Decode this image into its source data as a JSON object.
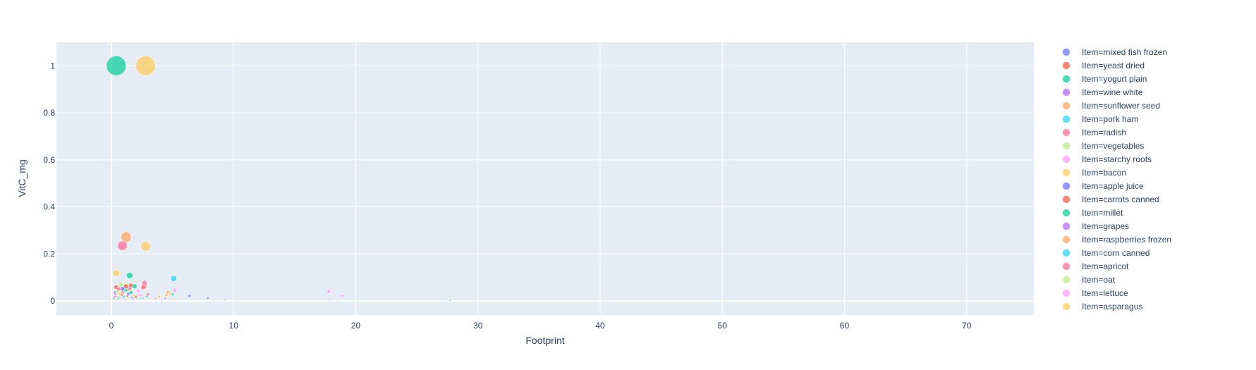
{
  "chart_data": {
    "type": "scatter",
    "title": "",
    "xlabel": "Footprint",
    "ylabel": "VitC_mg",
    "xlim": [
      -4.5,
      75.5
    ],
    "ylim": [
      -0.06,
      1.1
    ],
    "xticks": [
      0,
      10,
      20,
      30,
      40,
      50,
      60,
      70
    ],
    "yticks": [
      0,
      0.2,
      0.4,
      0.6,
      0.8,
      1
    ],
    "ytick_labels": [
      "0",
      "0.2",
      "0.4",
      "0.6",
      "0.8",
      "1"
    ],
    "grid": true,
    "legend_position": "right",
    "size_encodes": "VitC_mg",
    "series": [
      {
        "name": "Item=mixed fish frozen",
        "color": "#636efa",
        "points": [
          [
            0.3,
            0.035
          ],
          [
            1.4,
            0.03
          ],
          [
            6.4,
            0.022
          ],
          [
            7.9,
            0.013
          ],
          [
            9.3,
            0.004
          ],
          [
            27.7,
            0.002
          ]
        ]
      },
      {
        "name": "Item=yeast dried",
        "color": "#EF553B",
        "points": [
          [
            0.4,
            0.058
          ],
          [
            1.6,
            0.065
          ],
          [
            2.7,
            0.06
          ],
          [
            0.9,
            0.025
          ],
          [
            8.4,
            0.004
          ],
          [
            3.6,
            0.01
          ]
        ]
      },
      {
        "name": "Item=yogurt plain",
        "color": "#00cc96",
        "points": [
          [
            0.4,
            1.0
          ],
          [
            1.5,
            0.108
          ],
          [
            1.9,
            0.062
          ],
          [
            1.2,
            0.048
          ],
          [
            0.7,
            0.02
          ],
          [
            2.1,
            0.015
          ]
        ]
      },
      {
        "name": "Item=wine white",
        "color": "#ab63fa",
        "points": [
          [
            0.6,
            0.012
          ],
          [
            1.8,
            0.008
          ],
          [
            4.4,
            0.01
          ],
          [
            17.9,
            0.006
          ]
        ]
      },
      {
        "name": "Item=sunflower seed",
        "color": "#FFA15A",
        "points": [
          [
            1.2,
            0.272
          ],
          [
            4.6,
            0.035
          ],
          [
            2.6,
            0.012
          ],
          [
            3.9,
            0.018
          ]
        ]
      },
      {
        "name": "Item=pork ham",
        "color": "#19d3f3",
        "points": [
          [
            5.1,
            0.095
          ],
          [
            1.0,
            0.045
          ],
          [
            2.9,
            0.02
          ],
          [
            0.5,
            0.012
          ],
          [
            5.0,
            0.028
          ]
        ]
      },
      {
        "name": "Item=radish",
        "color": "#FF6692",
        "points": [
          [
            0.9,
            0.235
          ],
          [
            2.7,
            0.075
          ],
          [
            1.5,
            0.05
          ],
          [
            3.0,
            0.028
          ],
          [
            0.4,
            0.02
          ]
        ]
      },
      {
        "name": "Item=vegetables",
        "color": "#B6E880",
        "points": [
          [
            0.8,
            0.07
          ],
          [
            1.6,
            0.04
          ],
          [
            0.5,
            0.018
          ],
          [
            2.2,
            0.01
          ]
        ]
      },
      {
        "name": "Item=starchy roots",
        "color": "#FF97FF",
        "points": [
          [
            17.8,
            0.04
          ],
          [
            5.2,
            0.045
          ],
          [
            2.4,
            0.025
          ],
          [
            18.9,
            0.022
          ],
          [
            0.7,
            0.015
          ]
        ]
      },
      {
        "name": "Item=bacon",
        "color": "#FECB52",
        "points": [
          [
            2.8,
            1.0
          ],
          [
            2.8,
            0.232
          ],
          [
            0.4,
            0.118
          ],
          [
            4.8,
            0.03
          ],
          [
            1.3,
            0.01
          ]
        ]
      },
      {
        "name": "Item=apple juice",
        "color": "#636efa",
        "points": [
          [
            0.9,
            0.052
          ],
          [
            0.2,
            0.01
          ],
          [
            1.7,
            0.015
          ]
        ]
      },
      {
        "name": "Item=carrots canned",
        "color": "#EF553B",
        "points": [
          [
            1.2,
            0.062
          ],
          [
            2.0,
            0.018
          ],
          [
            0.5,
            0.008
          ]
        ]
      },
      {
        "name": "Item=millet",
        "color": "#00cc96",
        "points": [
          [
            1.6,
            0.035
          ],
          [
            2.3,
            0.008
          ],
          [
            0.6,
            0.01
          ]
        ]
      },
      {
        "name": "Item=grapes",
        "color": "#ab63fa",
        "points": [
          [
            0.3,
            0.02
          ],
          [
            1.1,
            0.006
          ],
          [
            4.1,
            0.004
          ]
        ]
      },
      {
        "name": "Item=raspberries frozen",
        "color": "#FFA15A",
        "points": [
          [
            0.9,
            0.036
          ],
          [
            4.5,
            0.025
          ],
          [
            1.9,
            0.01
          ]
        ]
      },
      {
        "name": "Item=corn canned",
        "color": "#19d3f3",
        "points": [
          [
            1.0,
            0.018
          ],
          [
            2.5,
            0.012
          ],
          [
            0.4,
            0.006
          ]
        ]
      },
      {
        "name": "Item=apricot",
        "color": "#FF6692",
        "points": [
          [
            0.6,
            0.05
          ],
          [
            2.6,
            0.058
          ],
          [
            1.3,
            0.02
          ]
        ]
      },
      {
        "name": "Item=oat",
        "color": "#B6E880",
        "points": [
          [
            0.5,
            0.038
          ],
          [
            1.4,
            0.014
          ],
          [
            3.5,
            0.006
          ]
        ]
      },
      {
        "name": "Item=lettuce",
        "color": "#FF97FF",
        "points": [
          [
            0.3,
            0.028
          ],
          [
            2.2,
            0.042
          ],
          [
            1.0,
            0.01
          ]
        ]
      },
      {
        "name": "Item=asparagus",
        "color": "#FECB52",
        "points": [
          [
            0.7,
            0.03
          ],
          [
            1.8,
            0.022
          ],
          [
            3.1,
            0.008
          ]
        ]
      }
    ]
  }
}
